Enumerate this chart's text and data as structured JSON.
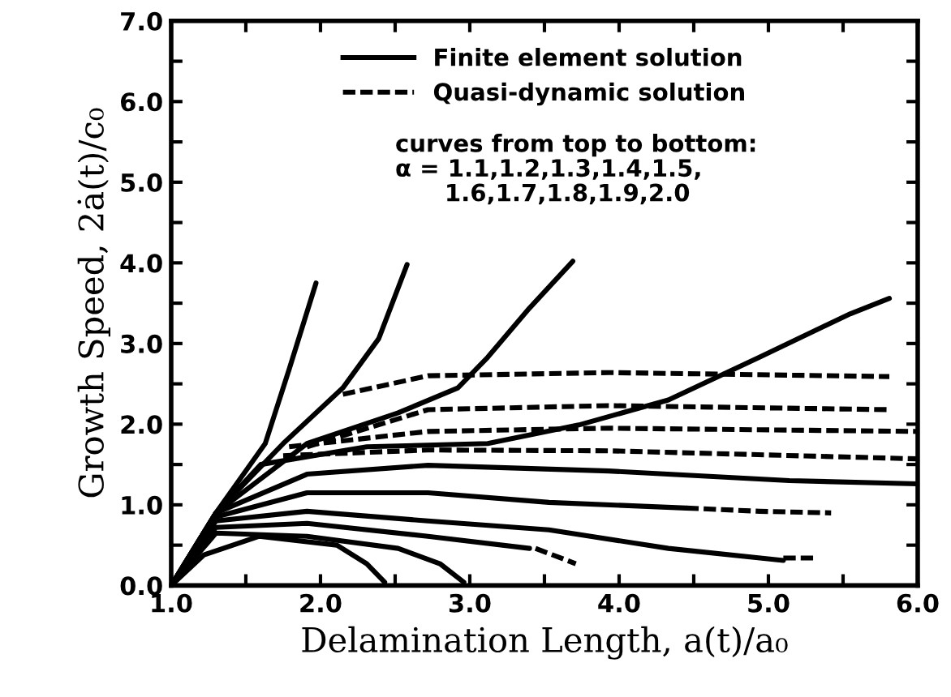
{
  "chart_data": {
    "type": "line",
    "xlabel": "Delamination Length, a(t)/a₀",
    "ylabel": "Growth Speed, 2ȧ(t)/c₀",
    "xlim": [
      1.0,
      6.0
    ],
    "ylim": [
      0.0,
      7.0
    ],
    "xticks": [
      {
        "value": 1.0,
        "label": "1.0"
      },
      {
        "value": 1.5,
        "label": null
      },
      {
        "value": 2.0,
        "label": "2.0"
      },
      {
        "value": 2.5,
        "label": null
      },
      {
        "value": 3.0,
        "label": "3.0"
      },
      {
        "value": 3.5,
        "label": null
      },
      {
        "value": 4.0,
        "label": "4.0"
      },
      {
        "value": 4.5,
        "label": null
      },
      {
        "value": 5.0,
        "label": "5.0"
      },
      {
        "value": 5.5,
        "label": null
      },
      {
        "value": 6.0,
        "label": "6.0"
      }
    ],
    "yticks": [
      {
        "value": 0.0,
        "label": "0.0"
      },
      {
        "value": 0.5,
        "label": null
      },
      {
        "value": 1.0,
        "label": "1.0"
      },
      {
        "value": 1.5,
        "label": null
      },
      {
        "value": 2.0,
        "label": "2.0"
      },
      {
        "value": 2.5,
        "label": null
      },
      {
        "value": 3.0,
        "label": "3.0"
      },
      {
        "value": 3.5,
        "label": null
      },
      {
        "value": 4.0,
        "label": "4.0"
      },
      {
        "value": 4.5,
        "label": null
      },
      {
        "value": 5.0,
        "label": "5.0"
      },
      {
        "value": 5.5,
        "label": null
      },
      {
        "value": 6.0,
        "label": "6.0"
      },
      {
        "value": 6.5,
        "label": null
      },
      {
        "value": 7.0,
        "label": "7.0"
      }
    ],
    "grid": false,
    "legend": "top",
    "marker": "none",
    "annotations": [
      "curves from top to bottom:\nα = 1.1,1.2,1.3,1.4,1.5,\n      1.6,1.7,1.8,1.9,2.0"
    ],
    "series": [
      {
        "name": "Finite element solution",
        "color": "#000000",
        "line_style": "solid",
        "x": [
          1.0,
          1.3,
          1.63,
          1.79,
          1.97
        ],
        "values": [
          0.0,
          0.9,
          1.76,
          2.68,
          3.75
        ]
      },
      {
        "color": "#000000",
        "line_style": "solid",
        "x": [
          1.0,
          1.3,
          1.75,
          2.15,
          2.39,
          2.58
        ],
        "values": [
          0.0,
          0.9,
          1.76,
          2.45,
          3.06,
          3.98
        ]
      },
      {
        "color": "#000000",
        "line_style": "solid",
        "x": [
          1.0,
          1.3,
          1.91,
          2.52,
          2.92,
          3.12,
          3.4,
          3.69
        ],
        "values": [
          0.0,
          0.9,
          1.76,
          2.14,
          2.45,
          2.83,
          3.44,
          4.02
        ]
      },
      {
        "color": "#000000",
        "line_style": "solid",
        "x": [
          1.0,
          1.3,
          1.6,
          2.31,
          3.12,
          3.73,
          4.33,
          4.94,
          5.55,
          5.81
        ],
        "values": [
          0.0,
          0.9,
          1.5,
          1.72,
          1.76,
          1.99,
          2.3,
          2.83,
          3.37,
          3.56
        ]
      },
      {
        "color": "#000000",
        "line_style": "solid",
        "x": [
          1.0,
          1.3,
          1.91,
          2.72,
          3.93,
          5.14,
          6.0
        ],
        "values": [
          0.0,
          0.9,
          1.38,
          1.49,
          1.42,
          1.3,
          1.26
        ]
      },
      {
        "color": "#000000",
        "line_style": "solid",
        "x": [
          1.0,
          1.3,
          1.91,
          2.72,
          3.53,
          4.45
        ],
        "values": [
          0.0,
          0.85,
          1.15,
          1.15,
          1.03,
          0.96
        ]
      },
      {
        "color": "#000000",
        "line_style": "solid",
        "x": [
          1.0,
          1.3,
          1.91,
          2.72,
          3.53,
          4.33,
          5.1
        ],
        "values": [
          0.0,
          0.8,
          0.92,
          0.8,
          0.69,
          0.46,
          0.31
        ]
      },
      {
        "color": "#000000",
        "line_style": "solid",
        "x": [
          1.0,
          1.3,
          1.91,
          2.72,
          3.4
        ],
        "values": [
          0.0,
          0.72,
          0.77,
          0.61,
          0.46
        ]
      },
      {
        "color": "#000000",
        "line_style": "solid",
        "x": [
          1.0,
          1.3,
          1.91,
          2.52,
          2.8,
          2.96
        ],
        "values": [
          0.0,
          0.65,
          0.61,
          0.46,
          0.27,
          0.04
        ]
      },
      {
        "color": "#000000",
        "line_style": "solid",
        "x": [
          1.0,
          1.22,
          1.59,
          2.11,
          2.31,
          2.43
        ],
        "values": [
          0.0,
          0.38,
          0.61,
          0.5,
          0.27,
          0.04
        ]
      },
      {
        "name": "Quasi-dynamic solution",
        "color": "#000000",
        "line_style": "dashed",
        "x": [
          2.15,
          2.72,
          3.93,
          5.81
        ],
        "values": [
          2.37,
          2.6,
          2.64,
          2.59
        ]
      },
      {
        "color": "#000000",
        "line_style": "dashed",
        "x": [
          1.91,
          2.72,
          3.93,
          5.81
        ],
        "values": [
          1.72,
          2.18,
          2.23,
          2.18
        ]
      },
      {
        "color": "#000000",
        "line_style": "dashed",
        "x": [
          1.79,
          2.72,
          3.93,
          6.0
        ],
        "values": [
          1.72,
          1.91,
          1.95,
          1.91
        ]
      },
      {
        "color": "#000000",
        "line_style": "dashed",
        "x": [
          1.75,
          2.72,
          3.93,
          6.0
        ],
        "values": [
          1.61,
          1.68,
          1.67,
          1.57
        ]
      },
      {
        "color": "#000000",
        "line_style": "dashed",
        "x": [
          4.45,
          4.94,
          5.42
        ],
        "values": [
          0.96,
          0.92,
          0.9
        ]
      },
      {
        "color": "#000000",
        "line_style": "dashed",
        "x": [
          5.1,
          5.32
        ],
        "values": [
          0.34,
          0.34
        ]
      },
      {
        "color": "#000000",
        "line_style": "dashed",
        "x": [
          3.44,
          3.71
        ],
        "values": [
          0.46,
          0.27
        ]
      }
    ]
  }
}
